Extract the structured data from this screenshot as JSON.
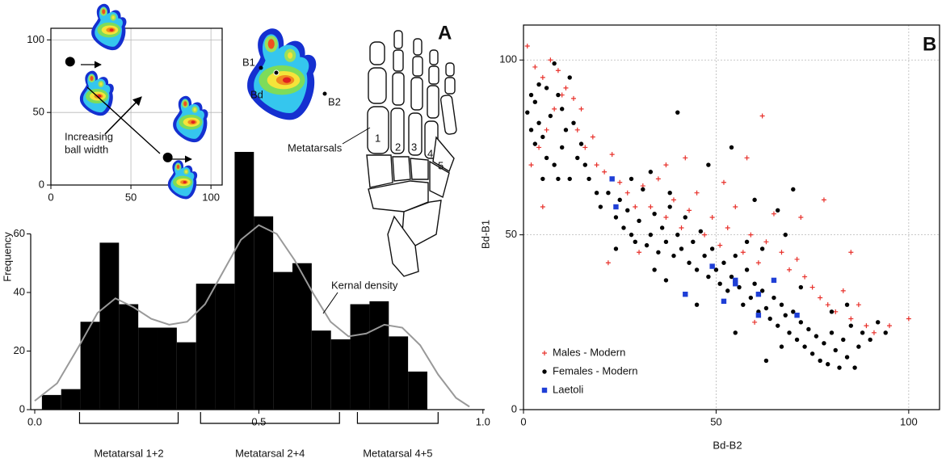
{
  "panel_labels": [
    "A",
    "B"
  ],
  "footprint": {
    "labels": [
      "B1",
      "Bd",
      "B2"
    ]
  },
  "skeleton": {
    "label": "Metatarsals",
    "numbers": [
      "1",
      "2",
      "3",
      "4",
      "5"
    ]
  },
  "chart_data": [
    {
      "type": "scatter",
      "x": [
        12,
        73
      ],
      "y": [
        85,
        19
      ],
      "color": "#000000",
      "xlim": [
        0,
        107
      ],
      "ylim": [
        0,
        108
      ],
      "xticks": [
        0,
        50,
        100
      ],
      "yticks": [
        0,
        50,
        100
      ],
      "grid": true,
      "annotation": [
        "Increasing",
        "ball width"
      ]
    },
    {
      "type": "histogram",
      "ylabel": "Frequency",
      "color": "#000000",
      "bins": [
        0.016,
        0.059,
        0.102,
        0.145,
        0.188,
        0.231,
        0.274,
        0.317,
        0.36,
        0.403,
        0.446,
        0.489,
        0.532,
        0.575,
        0.618,
        0.661,
        0.704,
        0.747,
        0.79,
        0.833,
        0.876
      ],
      "counts": [
        5,
        7,
        30,
        57,
        36,
        28,
        28,
        23,
        43,
        43,
        88,
        66,
        47,
        50,
        27,
        24,
        36,
        37,
        25,
        13
      ],
      "density": {
        "name": "Kernal density",
        "color": "#999999",
        "x": [
          0.0,
          0.05,
          0.1,
          0.14,
          0.18,
          0.22,
          0.26,
          0.3,
          0.34,
          0.38,
          0.42,
          0.46,
          0.5,
          0.54,
          0.58,
          0.62,
          0.66,
          0.7,
          0.74,
          0.78,
          0.82,
          0.86,
          0.9,
          0.94,
          0.97
        ],
        "y": [
          3,
          9,
          22,
          33,
          38,
          35,
          31,
          29,
          30,
          36,
          47,
          58,
          63,
          60,
          51,
          40,
          30,
          25,
          26,
          29,
          28,
          22,
          12,
          4,
          1
        ]
      },
      "xlim": [
        -0.009,
        1.004
      ],
      "ylim": [
        0,
        88
      ],
      "xticks": [
        {
          "value": 0,
          "label": "0.0"
        },
        {
          "value": 0.5,
          "label": "0.5"
        },
        {
          "value": 1,
          "label": "1.0"
        }
      ],
      "yticks": [
        0,
        20,
        40,
        60
      ],
      "groups": [
        {
          "label": "Metatarsal 1+2",
          "range": [
            0.1,
            0.32
          ]
        },
        {
          "label": "Metatarsal 2+4",
          "range": [
            0.37,
            0.68
          ]
        },
        {
          "label": "Metatarsal 4+5",
          "range": [
            0.72,
            0.9
          ]
        }
      ]
    },
    {
      "type": "scatter",
      "xlabel": "Bd-B2",
      "ylabel": "Bd-B1",
      "xlim": [
        0,
        108
      ],
      "ylim": [
        0,
        110
      ],
      "xticks": [
        0,
        50,
        100
      ],
      "yticks": [
        0,
        50,
        100
      ],
      "grid": true,
      "series": [
        {
          "name": "Males - Modern",
          "color": "#e8302a",
          "marker": "plus",
          "x": [
            1,
            3,
            5,
            7,
            9,
            11,
            13,
            15,
            2,
            4,
            6,
            8,
            10,
            14,
            16,
            18,
            19,
            21,
            23,
            25,
            27,
            29,
            31,
            33,
            35,
            37,
            39,
            41,
            43,
            45,
            47,
            49,
            51,
            53,
            55,
            57,
            59,
            61,
            63,
            65,
            67,
            69,
            71,
            73,
            75,
            77,
            79,
            81,
            83,
            85,
            87,
            89,
            91,
            95,
            100,
            52,
            58,
            42,
            37,
            60,
            30,
            22,
            5,
            72,
            78,
            62,
            85
          ],
          "y": [
            104,
            98,
            95,
            100,
            97,
            92,
            89,
            86,
            70,
            75,
            80,
            86,
            90,
            80,
            75,
            78,
            70,
            68,
            73,
            65,
            62,
            58,
            64,
            58,
            66,
            55,
            60,
            52,
            57,
            62,
            50,
            55,
            47,
            52,
            58,
            45,
            50,
            42,
            48,
            56,
            45,
            40,
            43,
            38,
            35,
            32,
            30,
            28,
            34,
            26,
            30,
            24,
            22,
            24,
            26,
            65,
            72,
            72,
            70,
            25,
            45,
            42,
            58,
            55,
            60,
            84,
            45
          ]
        },
        {
          "name": "Females - Modern",
          "color": "#000000",
          "marker": "circle",
          "x": [
            1,
            2,
            3,
            4,
            5,
            6,
            7,
            8,
            9,
            10,
            11,
            12,
            3,
            6,
            8,
            10,
            13,
            14,
            15,
            16,
            5,
            9,
            12,
            2,
            4,
            17,
            19,
            20,
            22,
            24,
            25,
            26,
            28,
            27,
            29,
            30,
            31,
            32,
            33,
            34,
            35,
            36,
            37,
            38,
            39,
            40,
            41,
            42,
            43,
            44,
            45,
            46,
            47,
            48,
            49,
            50,
            51,
            52,
            53,
            54,
            55,
            56,
            57,
            58,
            59,
            60,
            61,
            62,
            63,
            64,
            65,
            66,
            67,
            68,
            69,
            70,
            71,
            72,
            73,
            74,
            75,
            76,
            77,
            78,
            79,
            80,
            81,
            82,
            83,
            84,
            85,
            86,
            87,
            88,
            90,
            92,
            94,
            40,
            54,
            48,
            60,
            66,
            70,
            68,
            28,
            33,
            38,
            24,
            45,
            37,
            67,
            72,
            80,
            84,
            34,
            58,
            62,
            55,
            63
          ],
          "y": [
            85,
            80,
            88,
            82,
            78,
            92,
            84,
            99,
            90,
            86,
            80,
            95,
            76,
            72,
            70,
            75,
            82,
            72,
            76,
            70,
            66,
            66,
            66,
            90,
            93,
            66,
            62,
            58,
            62,
            55,
            60,
            52,
            50,
            57,
            48,
            54,
            63,
            47,
            50,
            56,
            45,
            52,
            48,
            58,
            44,
            50,
            46,
            55,
            42,
            48,
            40,
            51,
            44,
            38,
            46,
            40,
            36,
            42,
            34,
            38,
            44,
            35,
            30,
            40,
            32,
            36,
            28,
            34,
            29,
            26,
            32,
            24,
            30,
            27,
            22,
            28,
            20,
            25,
            18,
            23,
            16,
            21,
            14,
            19,
            13,
            22,
            17,
            12,
            20,
            15,
            24,
            12,
            18,
            22,
            20,
            25,
            22,
            85,
            75,
            70,
            60,
            57,
            63,
            50,
            66,
            68,
            62,
            46,
            30,
            37,
            18,
            35,
            28,
            30,
            40,
            48,
            46,
            22,
            14
          ]
        },
        {
          "name": "Laetoli",
          "color": "#1f3fd6",
          "marker": "square",
          "x": [
            23,
            24,
            42,
            49,
            52,
            55,
            55,
            61,
            61,
            65,
            71
          ],
          "y": [
            66,
            58,
            33,
            41,
            31,
            37,
            36,
            33,
            27,
            37,
            27
          ]
        }
      ]
    }
  ]
}
